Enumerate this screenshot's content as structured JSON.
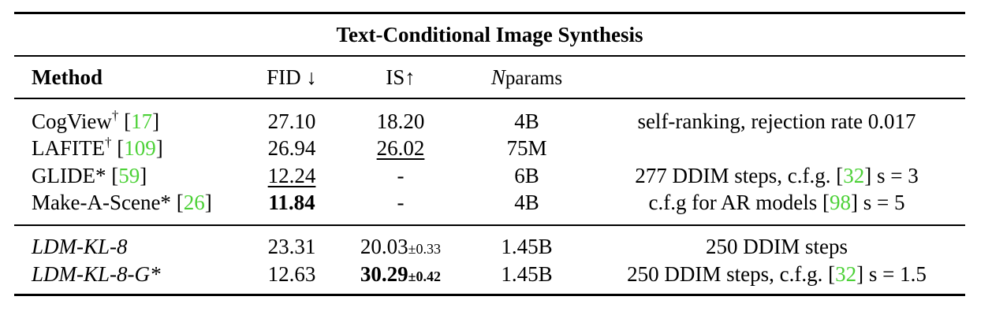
{
  "title": "Text-Conditional Image Synthesis",
  "headers": {
    "method": "Method",
    "fid": "FID ↓",
    "is": "IS↑",
    "nparams_n": "N",
    "nparams_sub": "params"
  },
  "rows": [
    {
      "method": "CogView",
      "mark": "†",
      "ref": "17",
      "fid": "27.10",
      "is": "18.20",
      "nparams": "4B",
      "note": "self-ranking, rejection rate 0.017",
      "note_ref": "",
      "note_suffix": ""
    },
    {
      "method": "LAFITE",
      "mark": "†",
      "ref": "109",
      "fid": "26.94",
      "is": "26.02",
      "nparams": "75M",
      "note": "",
      "note_ref": "",
      "note_suffix": ""
    },
    {
      "method": "GLIDE*",
      "mark": "",
      "ref": "59",
      "fid": "12.24",
      "is": "-",
      "nparams": "6B",
      "note": "277 DDIM steps, c.f.g. [",
      "note_ref": "32",
      "note_suffix": "] s = 3"
    },
    {
      "method": "Make-A-Scene*",
      "mark": "",
      "ref": "26",
      "fid": "11.84",
      "is": "-",
      "nparams": "4B",
      "note": "c.f.g for AR models [",
      "note_ref": "98",
      "note_suffix": "] s = 5"
    },
    {
      "method": "LDM-KL-8",
      "mark": "",
      "ref": "",
      "fid": "23.31",
      "is": "20.03",
      "is_pm": "±0.33",
      "nparams": "1.45B",
      "note": "250 DDIM steps",
      "note_ref": "",
      "note_suffix": ""
    },
    {
      "method": "LDM-KL-8-G*",
      "mark": "",
      "ref": "",
      "fid": "12.63",
      "is": "30.29",
      "is_pm": "±0.42",
      "nparams": "1.45B",
      "note": "250 DDIM steps, c.f.g. [",
      "note_ref": "32",
      "note_suffix": "] s = 1.5"
    }
  ]
}
